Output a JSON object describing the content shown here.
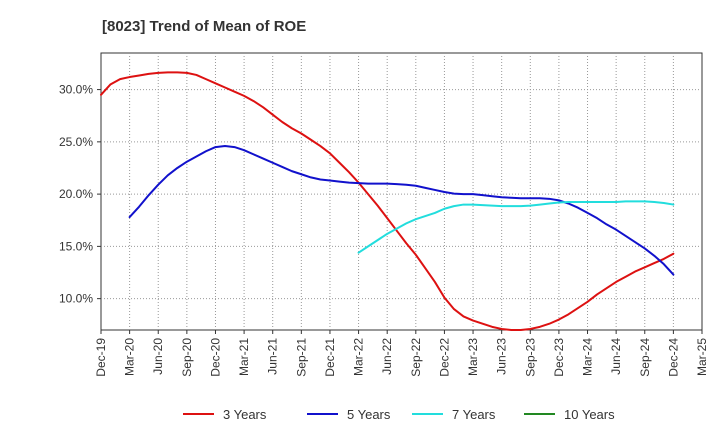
{
  "chart_data": {
    "type": "line",
    "title": "[8023]  Trend of Mean of ROE",
    "xlabel": "",
    "ylabel": "",
    "x_ticks": [
      "Dec-19",
      "Mar-20",
      "Jun-20",
      "Sep-20",
      "Dec-20",
      "Mar-21",
      "Jun-21",
      "Sep-21",
      "Dec-21",
      "Mar-22",
      "Jun-22",
      "Sep-22",
      "Dec-22",
      "Mar-23",
      "Jun-23",
      "Sep-23",
      "Dec-23",
      "Mar-24",
      "Jun-24",
      "Sep-24",
      "Dec-24",
      "Mar-25"
    ],
    "y_ticks": [
      {
        "value": 10,
        "label": "10.0%"
      },
      {
        "value": 15,
        "label": "15.0%"
      },
      {
        "value": 20,
        "label": "20.0%"
      },
      {
        "value": 25,
        "label": "25.0%"
      },
      {
        "value": 30,
        "label": "30.0%"
      }
    ],
    "ylim": [
      7,
      33.5
    ],
    "grid": true,
    "legend_position": "bottom",
    "series": [
      {
        "name": "3 Years",
        "color": "#dd1111",
        "points": [
          [
            "Dec-19",
            29.5
          ],
          [
            "Jan-20",
            30.5
          ],
          [
            "Feb-20",
            31.0
          ],
          [
            "Mar-20",
            31.2
          ],
          [
            "Apr-20",
            31.35
          ],
          [
            "May-20",
            31.5
          ],
          [
            "Jun-20",
            31.6
          ],
          [
            "Jul-20",
            31.65
          ],
          [
            "Aug-20",
            31.65
          ],
          [
            "Sep-20",
            31.6
          ],
          [
            "Oct-20",
            31.4
          ],
          [
            "Nov-20",
            31.0
          ],
          [
            "Dec-20",
            30.6
          ],
          [
            "Jan-21",
            30.2
          ],
          [
            "Feb-21",
            29.8
          ],
          [
            "Mar-21",
            29.4
          ],
          [
            "Apr-21",
            28.9
          ],
          [
            "May-21",
            28.3
          ],
          [
            "Jun-21",
            27.6
          ],
          [
            "Jul-21",
            26.9
          ],
          [
            "Aug-21",
            26.3
          ],
          [
            "Sep-21",
            25.8
          ],
          [
            "Oct-21",
            25.2
          ],
          [
            "Nov-21",
            24.6
          ],
          [
            "Dec-21",
            23.9
          ],
          [
            "Jan-22",
            23.0
          ],
          [
            "Feb-22",
            22.1
          ],
          [
            "Mar-22",
            21.1
          ],
          [
            "Apr-22",
            20.0
          ],
          [
            "May-22",
            18.9
          ],
          [
            "Jun-22",
            17.7
          ],
          [
            "Jul-22",
            16.5
          ],
          [
            "Aug-22",
            15.3
          ],
          [
            "Sep-22",
            14.2
          ],
          [
            "Oct-22",
            12.9
          ],
          [
            "Nov-22",
            11.6
          ],
          [
            "Dec-22",
            10.1
          ],
          [
            "Jan-23",
            9.0
          ],
          [
            "Feb-23",
            8.3
          ],
          [
            "Mar-23",
            7.9
          ],
          [
            "Apr-23",
            7.6
          ],
          [
            "May-23",
            7.3
          ],
          [
            "Jun-23",
            7.1
          ],
          [
            "Jul-23",
            7.0
          ],
          [
            "Aug-23",
            7.0
          ],
          [
            "Sep-23",
            7.1
          ],
          [
            "Oct-23",
            7.3
          ],
          [
            "Nov-23",
            7.6
          ],
          [
            "Dec-23",
            8.0
          ],
          [
            "Jan-24",
            8.5
          ],
          [
            "Feb-24",
            9.1
          ],
          [
            "Mar-24",
            9.7
          ],
          [
            "Apr-24",
            10.4
          ],
          [
            "May-24",
            11.0
          ],
          [
            "Jun-24",
            11.6
          ],
          [
            "Jul-24",
            12.1
          ],
          [
            "Aug-24",
            12.6
          ],
          [
            "Sep-24",
            13.0
          ],
          [
            "Oct-24",
            13.4
          ],
          [
            "Nov-24",
            13.8
          ],
          [
            "Dec-24",
            14.3
          ]
        ]
      },
      {
        "name": "5 Years",
        "color": "#1111cc",
        "points": [
          [
            "Mar-20",
            17.8
          ],
          [
            "Apr-20",
            18.8
          ],
          [
            "May-20",
            19.9
          ],
          [
            "Jun-20",
            20.9
          ],
          [
            "Jul-20",
            21.8
          ],
          [
            "Aug-20",
            22.5
          ],
          [
            "Sep-20",
            23.1
          ],
          [
            "Oct-20",
            23.6
          ],
          [
            "Nov-20",
            24.1
          ],
          [
            "Dec-20",
            24.5
          ],
          [
            "Jan-21",
            24.6
          ],
          [
            "Feb-21",
            24.5
          ],
          [
            "Mar-21",
            24.2
          ],
          [
            "Apr-21",
            23.8
          ],
          [
            "May-21",
            23.4
          ],
          [
            "Jun-21",
            23.0
          ],
          [
            "Jul-21",
            22.6
          ],
          [
            "Aug-21",
            22.2
          ],
          [
            "Sep-21",
            21.9
          ],
          [
            "Oct-21",
            21.6
          ],
          [
            "Nov-21",
            21.4
          ],
          [
            "Dec-21",
            21.3
          ],
          [
            "Jan-22",
            21.2
          ],
          [
            "Feb-22",
            21.1
          ],
          [
            "Mar-22",
            21.05
          ],
          [
            "Apr-22",
            21.0
          ],
          [
            "May-22",
            21.0
          ],
          [
            "Jun-22",
            21.0
          ],
          [
            "Jul-22",
            20.95
          ],
          [
            "Aug-22",
            20.9
          ],
          [
            "Sep-22",
            20.8
          ],
          [
            "Oct-22",
            20.6
          ],
          [
            "Nov-22",
            20.4
          ],
          [
            "Dec-22",
            20.2
          ],
          [
            "Jan-23",
            20.05
          ],
          [
            "Feb-23",
            20.0
          ],
          [
            "Mar-23",
            20.0
          ],
          [
            "Apr-23",
            19.9
          ],
          [
            "May-23",
            19.8
          ],
          [
            "Jun-23",
            19.7
          ],
          [
            "Jul-23",
            19.65
          ],
          [
            "Aug-23",
            19.6
          ],
          [
            "Sep-23",
            19.6
          ],
          [
            "Oct-23",
            19.6
          ],
          [
            "Nov-23",
            19.55
          ],
          [
            "Dec-23",
            19.4
          ],
          [
            "Jan-24",
            19.1
          ],
          [
            "Feb-24",
            18.7
          ],
          [
            "Mar-24",
            18.2
          ],
          [
            "Apr-24",
            17.7
          ],
          [
            "May-24",
            17.1
          ],
          [
            "Jun-24",
            16.6
          ],
          [
            "Jul-24",
            16.0
          ],
          [
            "Aug-24",
            15.4
          ],
          [
            "Sep-24",
            14.8
          ],
          [
            "Oct-24",
            14.1
          ],
          [
            "Nov-24",
            13.3
          ],
          [
            "Dec-24",
            12.3
          ]
        ]
      },
      {
        "name": "7 Years",
        "color": "#22dddd",
        "points": [
          [
            "Mar-22",
            14.4
          ],
          [
            "Apr-22",
            15.0
          ],
          [
            "May-22",
            15.6
          ],
          [
            "Jun-22",
            16.2
          ],
          [
            "Jul-22",
            16.7
          ],
          [
            "Aug-22",
            17.2
          ],
          [
            "Sep-22",
            17.6
          ],
          [
            "Oct-22",
            17.9
          ],
          [
            "Nov-22",
            18.2
          ],
          [
            "Dec-22",
            18.6
          ],
          [
            "Jan-23",
            18.85
          ],
          [
            "Feb-23",
            19.0
          ],
          [
            "Mar-23",
            19.0
          ],
          [
            "Apr-23",
            18.95
          ],
          [
            "May-23",
            18.9
          ],
          [
            "Jun-23",
            18.85
          ],
          [
            "Jul-23",
            18.85
          ],
          [
            "Aug-23",
            18.85
          ],
          [
            "Sep-23",
            18.9
          ],
          [
            "Oct-23",
            19.0
          ],
          [
            "Nov-23",
            19.1
          ],
          [
            "Dec-23",
            19.2
          ],
          [
            "Jan-24",
            19.25
          ],
          [
            "Feb-24",
            19.25
          ],
          [
            "Mar-24",
            19.25
          ],
          [
            "Apr-24",
            19.25
          ],
          [
            "May-24",
            19.25
          ],
          [
            "Jun-24",
            19.25
          ],
          [
            "Jul-24",
            19.3
          ],
          [
            "Aug-24",
            19.3
          ],
          [
            "Sep-24",
            19.3
          ],
          [
            "Oct-24",
            19.25
          ],
          [
            "Nov-24",
            19.15
          ],
          [
            "Dec-24",
            19.0
          ]
        ]
      },
      {
        "name": "10 Years",
        "color": "#228822",
        "points": []
      }
    ]
  }
}
